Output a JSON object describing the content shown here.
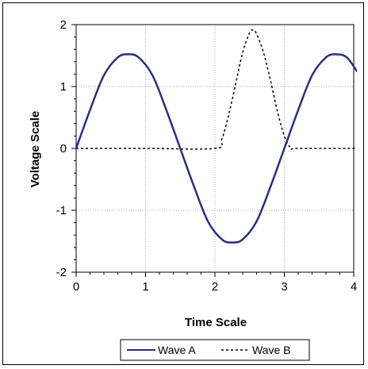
{
  "chart_data": {
    "type": "line",
    "xlabel": "Time Scale",
    "ylabel": "Voltage Scale",
    "xlim": [
      0,
      4
    ],
    "ylim": [
      -2,
      2
    ],
    "x_ticks": [
      "0",
      "1",
      "2",
      "3",
      "4"
    ],
    "y_ticks": [
      "2",
      "1",
      "0",
      "-1",
      "-2"
    ],
    "grid": true,
    "legend_placement": "bottom",
    "series": [
      {
        "name": "Wave A",
        "color": "#2e2e7a",
        "dash": "solid",
        "x": [
          0,
          0.2,
          0.4,
          0.6,
          0.75,
          0.9,
          1.1,
          1.3,
          1.5,
          1.7,
          1.9,
          2.1,
          2.25,
          2.4,
          2.6,
          2.8,
          3.0,
          3.2,
          3.4,
          3.6,
          3.75,
          3.9,
          4.05
        ],
        "y": [
          0,
          0.62,
          1.18,
          1.47,
          1.52,
          1.47,
          1.18,
          0.62,
          0,
          -0.62,
          -1.18,
          -1.47,
          -1.52,
          -1.47,
          -1.18,
          -0.62,
          0,
          0.62,
          1.18,
          1.47,
          1.52,
          1.47,
          1.24
        ]
      },
      {
        "name": "Wave B",
        "color": "#000000",
        "dash": "dashed",
        "x": [
          0,
          1.0,
          2.0,
          2.1,
          2.2,
          2.3,
          2.4,
          2.5,
          2.55,
          2.6,
          2.7,
          2.8,
          2.9,
          3.0,
          3.1,
          3.2,
          4.05
        ],
        "y": [
          0,
          0,
          0,
          0.15,
          0.55,
          1.05,
          1.55,
          1.87,
          1.91,
          1.85,
          1.55,
          1.1,
          0.6,
          0.2,
          0,
          0,
          0
        ]
      }
    ]
  }
}
